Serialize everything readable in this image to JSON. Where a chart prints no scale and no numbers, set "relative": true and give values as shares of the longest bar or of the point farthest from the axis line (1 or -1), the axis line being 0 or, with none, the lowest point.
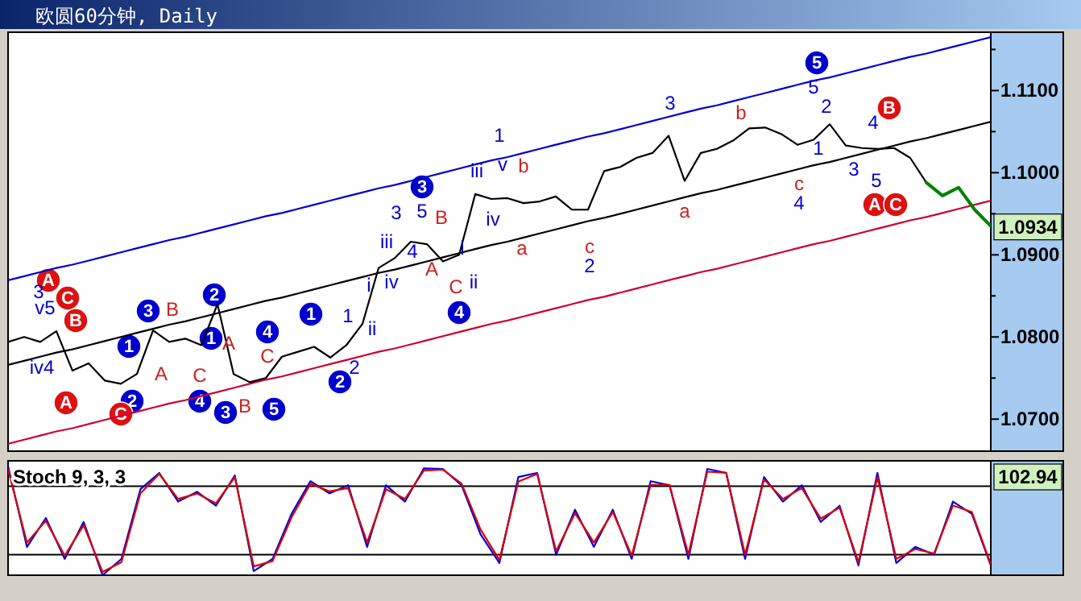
{
  "chart_data": [
    {
      "type": "line",
      "title": "欧圆60分钟, Daily",
      "tick_labels": "y",
      "grid": false,
      "ylim": [
        1.0661,
        1.1171
      ],
      "categories": [
        null,
        null,
        null,
        null,
        null,
        null,
        null,
        null,
        null,
        null,
        null,
        null,
        null,
        null,
        null,
        null,
        null,
        null,
        null,
        null,
        null,
        null,
        null,
        null,
        null,
        null,
        null,
        null,
        null,
        null,
        null,
        null,
        null,
        null,
        null,
        null,
        null,
        null,
        null,
        null,
        null,
        null,
        null,
        null,
        null,
        null,
        null,
        null,
        null,
        null,
        null,
        null,
        null,
        null,
        null,
        null,
        null,
        null,
        null,
        null,
        null,
        null
      ],
      "yticks": [
        {
          "value": 1.07,
          "label": "1.0700"
        },
        {
          "value": 1.075,
          "label": null
        },
        {
          "value": 1.08,
          "label": "1.0800"
        },
        {
          "value": 1.085,
          "label": null
        },
        {
          "value": 1.09,
          "label": "1.0900"
        },
        {
          "value": 1.095,
          "label": null
        },
        {
          "value": 1.1,
          "label": "1.1000"
        },
        {
          "value": 1.105,
          "label": null
        },
        {
          "value": 1.11,
          "label": "1.1100"
        },
        {
          "value": 1.115,
          "label": null
        }
      ],
      "series": [
        {
          "type": "line",
          "color": "#0000cc",
          "values": [
            1.0869,
            1.0874,
            1.0879,
            1.0884,
            1.0888,
            1.0893,
            1.0898,
            1.0903,
            1.0908,
            1.0913,
            1.0918,
            1.0922,
            1.0927,
            1.0932,
            1.0937,
            1.0942,
            1.0947,
            1.0951,
            1.0956,
            1.0961,
            1.0966,
            1.0971,
            1.0976,
            1.0981,
            1.0985,
            1.099,
            1.0995,
            1.1,
            1.1005,
            1.101,
            1.1015,
            1.1019,
            1.1024,
            1.1029,
            1.1034,
            1.1039,
            1.1044,
            1.1048,
            1.1053,
            1.1058,
            1.1063,
            1.1068,
            1.1073,
            1.1078,
            1.1082,
            1.1087,
            1.1092,
            1.1097,
            1.1102,
            1.1107,
            1.1112,
            1.1116,
            1.1121,
            1.1126,
            1.1131,
            1.1136,
            1.1141,
            1.1145,
            1.115,
            1.1155,
            1.116,
            1.1165
          ]
        },
        {
          "type": "line",
          "color": "#000000",
          "values": [
            1.0766,
            1.0771,
            1.0776,
            1.0781,
            1.0785,
            1.079,
            1.0795,
            1.08,
            1.0805,
            1.081,
            1.0815,
            1.0819,
            1.0824,
            1.0829,
            1.0834,
            1.0839,
            1.0844,
            1.0848,
            1.0853,
            1.0858,
            1.0863,
            1.0868,
            1.0873,
            1.0878,
            1.0882,
            1.0887,
            1.0892,
            1.0897,
            1.0902,
            1.0907,
            1.0912,
            1.0916,
            1.0921,
            1.0926,
            1.0931,
            1.0936,
            1.0941,
            1.0945,
            1.095,
            1.0955,
            1.096,
            1.0965,
            1.097,
            1.0975,
            1.0979,
            1.0984,
            1.0989,
            1.0994,
            1.0999,
            1.1004,
            1.1009,
            1.1013,
            1.1018,
            1.1023,
            1.1028,
            1.1033,
            1.1038,
            1.1042,
            1.1047,
            1.1052,
            1.1057,
            1.1062
          ]
        },
        {
          "type": "line",
          "color": "#cc0033",
          "values": [
            1.067,
            1.0675,
            1.068,
            1.0685,
            1.0689,
            1.0694,
            1.0699,
            1.0704,
            1.0709,
            1.0714,
            1.0719,
            1.0723,
            1.0728,
            1.0733,
            1.0738,
            1.0743,
            1.0748,
            1.0752,
            1.0757,
            1.0762,
            1.0767,
            1.0772,
            1.0777,
            1.0782,
            1.0786,
            1.0791,
            1.0796,
            1.0801,
            1.0806,
            1.0811,
            1.0816,
            1.082,
            1.0825,
            1.083,
            1.0835,
            1.084,
            1.0845,
            1.0849,
            1.0854,
            1.0859,
            1.0864,
            1.0869,
            1.0874,
            1.0879,
            1.0883,
            1.0888,
            1.0893,
            1.0898,
            1.0903,
            1.0908,
            1.0913,
            1.0917,
            1.0922,
            1.0927,
            1.0932,
            1.0937,
            1.0942,
            1.0946,
            1.0951,
            1.0956,
            1.0961,
            1.0966
          ]
        },
        {
          "type": "line",
          "color": "#000000",
          "values": [
            1.0794,
            1.08,
            1.0794,
            1.0807,
            1.0759,
            1.0768,
            1.0747,
            1.0743,
            1.0755,
            1.0808,
            1.0794,
            1.0798,
            1.079,
            1.084,
            1.0755,
            1.0745,
            1.075,
            1.0776,
            1.0782,
            1.0788,
            1.0775,
            1.079,
            1.0816,
            1.0884,
            1.0896,
            1.0916,
            1.0913,
            1.0892,
            1.09,
            1.0974,
            1.0968,
            1.0969,
            1.0963,
            1.0965,
            1.0971,
            1.0955,
            1.0955,
            1.1002,
            1.1007,
            1.1018,
            1.1024,
            1.1045,
            1.099,
            1.1024,
            1.1029,
            1.1039,
            1.1054,
            1.1055,
            1.1047,
            1.1034,
            1.104,
            1.1059,
            1.1033,
            1.103,
            1.1029,
            1.103,
            1.1018,
            1.0988,
            null,
            null,
            null,
            null
          ]
        },
        {
          "type": "line",
          "color": "#008000",
          "values": [
            null,
            null,
            null,
            null,
            null,
            null,
            null,
            null,
            null,
            null,
            null,
            null,
            null,
            null,
            null,
            null,
            null,
            null,
            null,
            null,
            null,
            null,
            null,
            null,
            null,
            null,
            null,
            null,
            null,
            null,
            null,
            null,
            null,
            null,
            null,
            null,
            null,
            null,
            null,
            null,
            null,
            null,
            null,
            null,
            null,
            null,
            null,
            null,
            null,
            null,
            null,
            null,
            null,
            null,
            null,
            null,
            null,
            1.0988,
            1.0972,
            1.0982,
            1.0955,
            1.0935
          ]
        }
      ],
      "annotations": [
        "3",
        "1",
        "2",
        "1",
        "4",
        "1",
        "2",
        "4",
        "3",
        "5",
        "2",
        "3",
        "4",
        "5",
        "A",
        "C",
        "B",
        "A",
        "C",
        "B",
        "A",
        "C",
        "3",
        "v5",
        "iv4",
        "1",
        "2",
        "ii",
        "i",
        "iii",
        "3",
        "5",
        "iv",
        "4",
        "i",
        "ii",
        "iii",
        "1",
        "v",
        "iv",
        "3",
        "2",
        "4",
        "5",
        "2",
        "1",
        "3",
        "4",
        "5",
        "B",
        "A",
        "C",
        "A",
        "C",
        "B",
        "A",
        "B",
        "C",
        "b",
        "a",
        "c",
        "a",
        "b",
        "c",
        {
          "text": "1.0934",
          "y": 1.0934
        }
      ]
    },
    {
      "type": "line",
      "title": "Stoch 9, 3, 3",
      "relative": true,
      "tick_labels": false,
      "grid": false,
      "categories": [
        null,
        null,
        null,
        null,
        null,
        null,
        null,
        null,
        null,
        null,
        null,
        null,
        null,
        null,
        null,
        null,
        null,
        null,
        null,
        null,
        null,
        null,
        null,
        null,
        null,
        null,
        null,
        null,
        null,
        null,
        null,
        null,
        null,
        null,
        null,
        null,
        null,
        null,
        null,
        null,
        null,
        null,
        null,
        null,
        null,
        null,
        null,
        null,
        null,
        null,
        null,
        null,
        null
      ],
      "ref_lines": [
        {
          "axis": "y",
          "value": 0.818,
          "color": "#000000"
        },
        {
          "axis": "y",
          "value": 0.188,
          "color": "#000000"
        }
      ],
      "series": [
        {
          "type": "line",
          "color": "#0000dd",
          "values": [
            1.0,
            0.26,
            0.525,
            0.15,
            0.489,
            0.0,
            0.15,
            0.788,
            0.939,
            0.676,
            0.766,
            0.638,
            0.916,
            0.038,
            0.15,
            0.563,
            0.863,
            0.751,
            0.826,
            0.26,
            0.826,
            0.676,
            0.98,
            0.976,
            0.826,
            0.376,
            0.112,
            0.901,
            0.939,
            0.188,
            0.601,
            0.26,
            0.601,
            0.15,
            0.863,
            0.826,
            0.15,
            0.976,
            0.939,
            0.15,
            0.901,
            0.676,
            0.826,
            0.489,
            0.638,
            0.09,
            0.939,
            0.112,
            0.26,
            0.188,
            0.676,
            0.563,
            0.09
          ]
        },
        {
          "type": "line",
          "color": "#dd0000",
          "values": [
            0.97,
            0.3,
            0.5,
            0.18,
            0.46,
            0.03,
            0.12,
            0.75,
            0.93,
            0.7,
            0.75,
            0.66,
            0.9,
            0.08,
            0.13,
            0.53,
            0.84,
            0.77,
            0.8,
            0.3,
            0.79,
            0.7,
            0.96,
            0.97,
            0.84,
            0.42,
            0.14,
            0.86,
            0.93,
            0.22,
            0.57,
            0.3,
            0.58,
            0.18,
            0.83,
            0.83,
            0.19,
            0.95,
            0.94,
            0.19,
            0.88,
            0.7,
            0.8,
            0.52,
            0.62,
            0.12,
            0.9,
            0.15,
            0.24,
            0.2,
            0.64,
            0.58,
            0.1
          ]
        }
      ],
      "annotations": [
        "102.94"
      ]
    }
  ]
}
